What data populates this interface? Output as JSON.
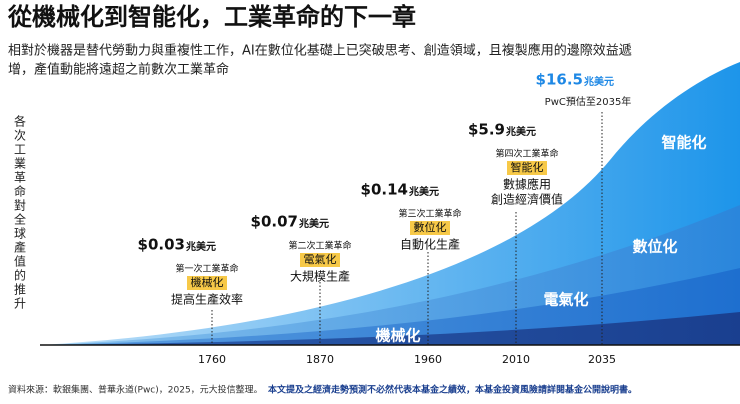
{
  "header": {
    "title": "從機械化到智能化，工業革命的下一章",
    "subtitle": [
      "相對於機器是替代勞動力與重複性工作，AI在數位化基礎上已突破思考、創造領域，且複製應用的邊際效益遞",
      "增，產值動能將遠超之前數次工業革命"
    ]
  },
  "y_label": [
    "各",
    "次",
    "工",
    "業",
    "革",
    "命",
    "對",
    "全",
    "球",
    "產",
    "值",
    "的",
    "推",
    "升"
  ],
  "x_labels": [
    "1760",
    "1870",
    "1960",
    "2010",
    "2035"
  ],
  "milestones": [
    {
      "amount": "$0.03",
      "unit": "兆美元",
      "era": "第一次工業革命",
      "theme": "機械化",
      "desc": [
        "提高生產效率"
      ]
    },
    {
      "amount": "$0.07",
      "unit": "兆美元",
      "era": "第二次工業革命",
      "theme": "電氣化",
      "desc": [
        "大規模生產"
      ]
    },
    {
      "amount": "$0.14",
      "unit": "兆美元",
      "era": "第三次工業革命",
      "theme": "數位化",
      "desc": [
        "自動化生產"
      ]
    },
    {
      "amount": "$5.9",
      "unit": "兆美元",
      "era": "第四次工業革命",
      "theme": "智能化",
      "desc": [
        "數據應用",
        "創造經濟價值"
      ]
    }
  ],
  "forecast": {
    "amount": "$16.5",
    "unit": "兆美元",
    "note": "PwC預估至2035年"
  },
  "layers": [
    "機械化",
    "電氣化",
    "數位化",
    "智能化"
  ],
  "footer": {
    "source": "資料來源：軟銀集團、普華永道(Pwc)，2025，元大投信整理。",
    "disclaimer": "本文提及之經濟走勢預測不必然代表本基金之績效，本基金投資風險請詳閱基金公開說明書。"
  }
}
